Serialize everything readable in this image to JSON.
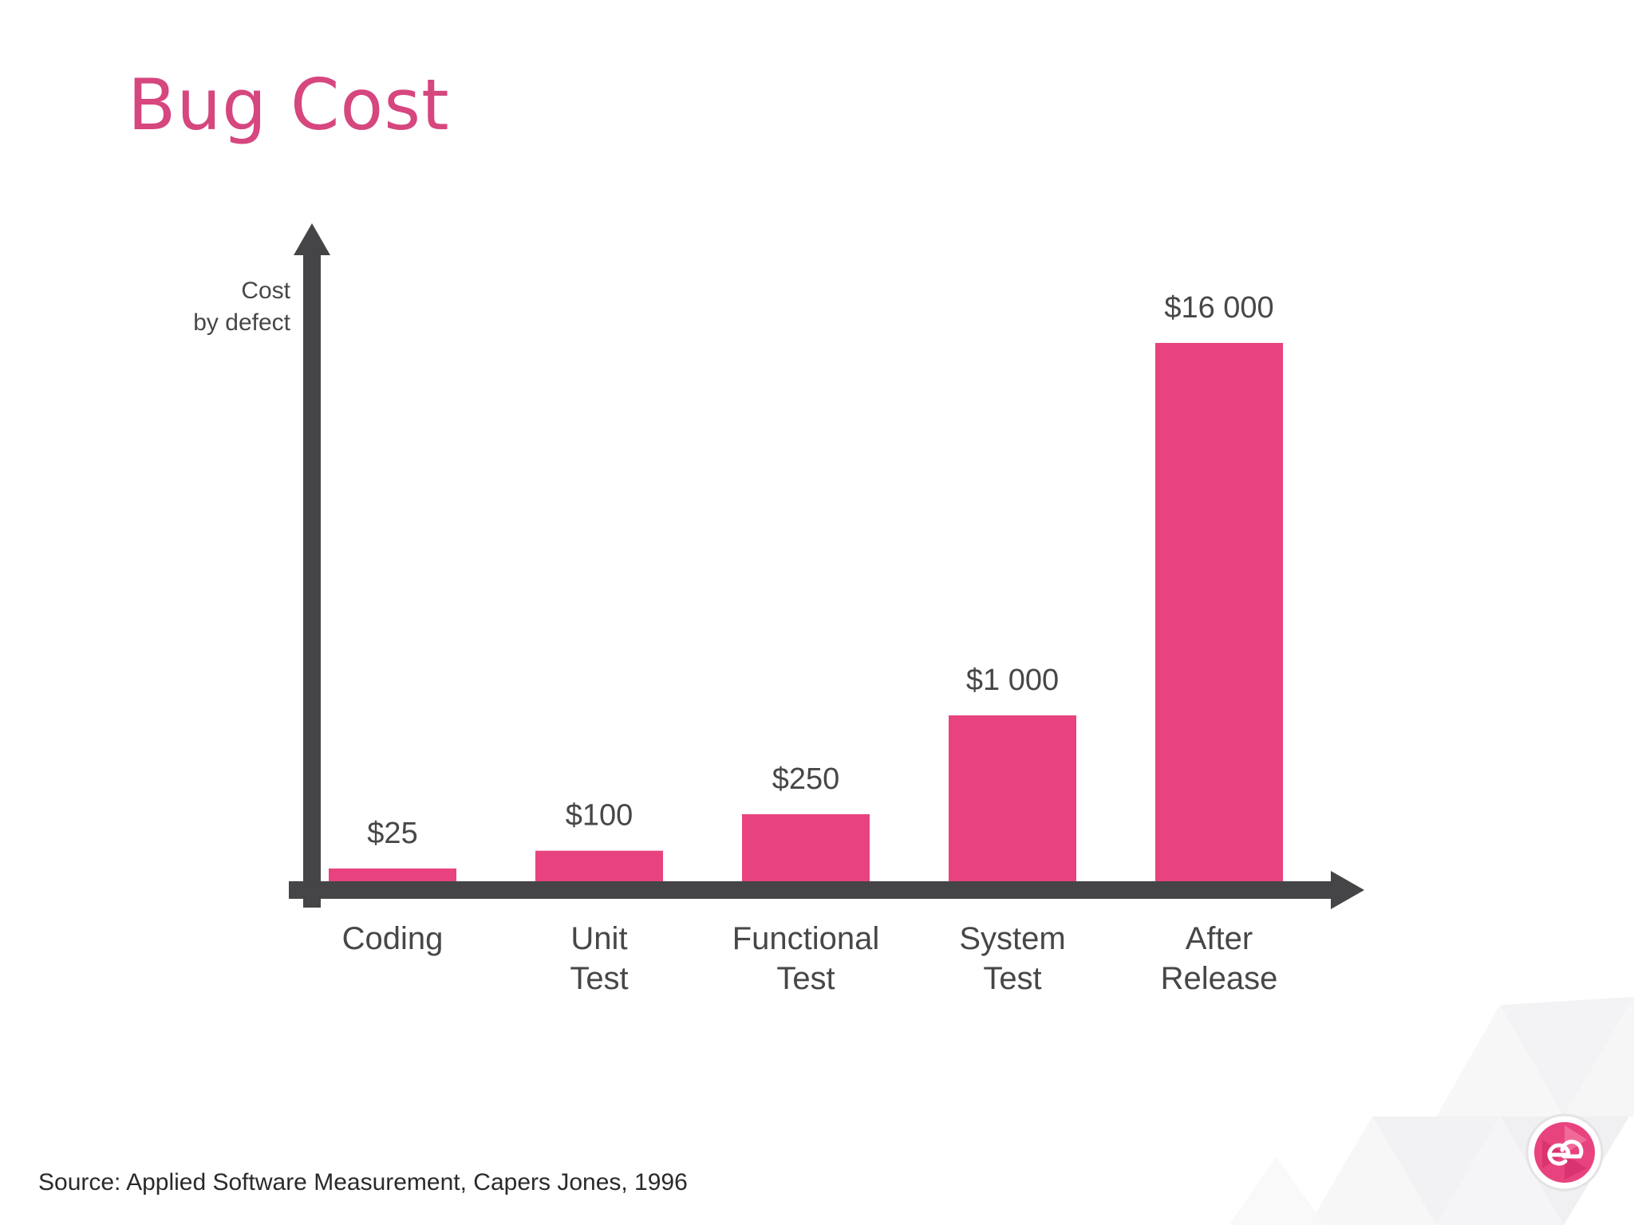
{
  "slide": {
    "title": "Bug Cost",
    "source": "Source: Applied Software Measurement, Capers Jones, 1996"
  },
  "colors": {
    "accent": "#e8437f",
    "title": "#d6467f",
    "axis": "#454547",
    "label": "#474747"
  },
  "chart_data": {
    "type": "bar",
    "ylabel": [
      "Cost",
      "by defect"
    ],
    "categories": [
      [
        "Coding"
      ],
      [
        "Unit",
        "Test"
      ],
      [
        "Functional",
        "Test"
      ],
      [
        "System",
        "Test"
      ],
      [
        "After",
        "Release"
      ]
    ],
    "values": [
      25,
      100,
      250,
      1000,
      16000
    ],
    "value_labels": [
      "$25",
      "$100",
      "$250",
      "$1 000",
      "$16 000"
    ],
    "legend": "none",
    "grid": false
  }
}
